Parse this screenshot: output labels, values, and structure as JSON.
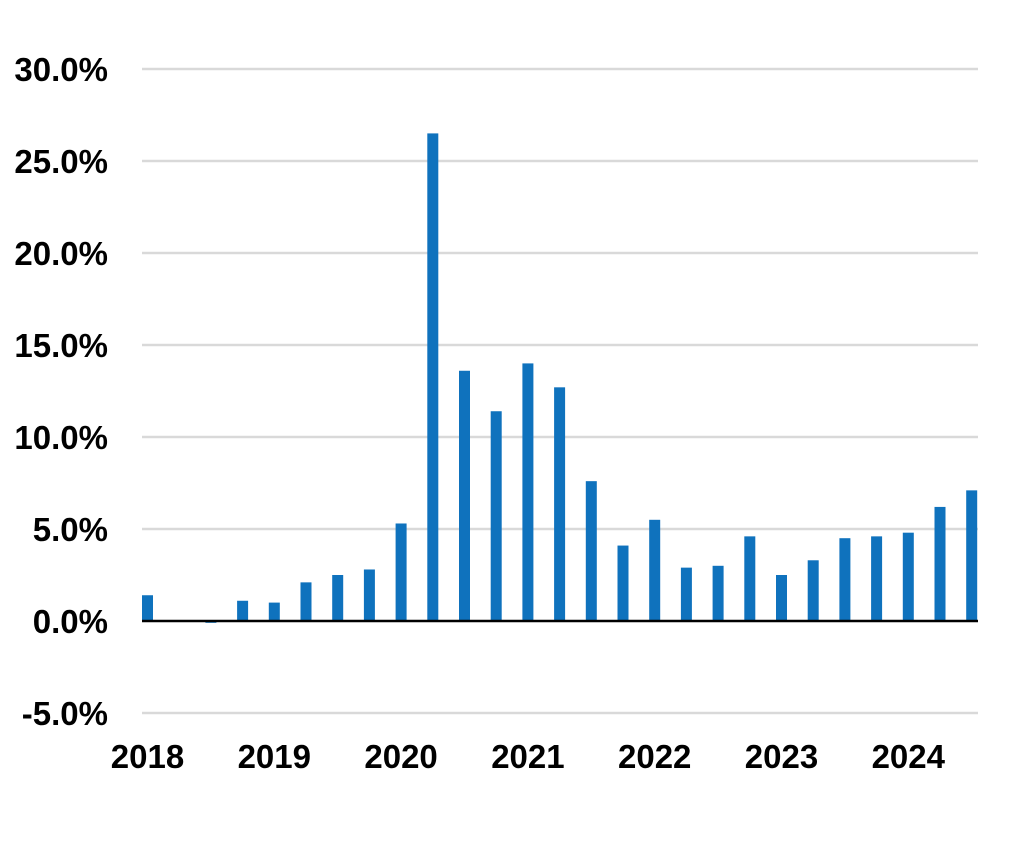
{
  "chart_data": {
    "type": "bar",
    "title": "",
    "xlabel": "",
    "ylabel": "",
    "ylim": [
      -5.0,
      30.0
    ],
    "y_ticks": [
      "-5.0%",
      "0.0%",
      "5.0%",
      "10.0%",
      "15.0%",
      "20.0%",
      "25.0%",
      "30.0%"
    ],
    "y_tick_values": [
      -5,
      0,
      5,
      10,
      15,
      20,
      25,
      30
    ],
    "x_tick_labels": [
      "2018",
      "2019",
      "2020",
      "2021",
      "2022",
      "2023",
      "2024"
    ],
    "grid": true,
    "legend": "none",
    "bar_color": "#0f72bd",
    "categories": [
      "2018Q1",
      "2018Q2",
      "2018Q3",
      "2018Q4",
      "2019Q1",
      "2019Q2",
      "2019Q3",
      "2019Q4",
      "2020Q1",
      "2020Q2",
      "2020Q3",
      "2020Q4",
      "2021Q1",
      "2021Q2",
      "2021Q3",
      "2021Q4",
      "2022Q1",
      "2022Q2",
      "2022Q3",
      "2022Q4",
      "2023Q1",
      "2023Q2",
      "2023Q3",
      "2023Q4",
      "2024Q1",
      "2024Q2",
      "2024Q3"
    ],
    "values": [
      1.4,
      0.0,
      -0.1,
      1.1,
      1.0,
      2.1,
      2.5,
      2.8,
      5.3,
      26.5,
      13.6,
      11.4,
      14.0,
      12.7,
      7.6,
      4.1,
      5.5,
      2.9,
      3.0,
      4.6,
      2.5,
      3.3,
      4.5,
      4.6,
      4.8,
      6.2,
      7.1
    ]
  }
}
